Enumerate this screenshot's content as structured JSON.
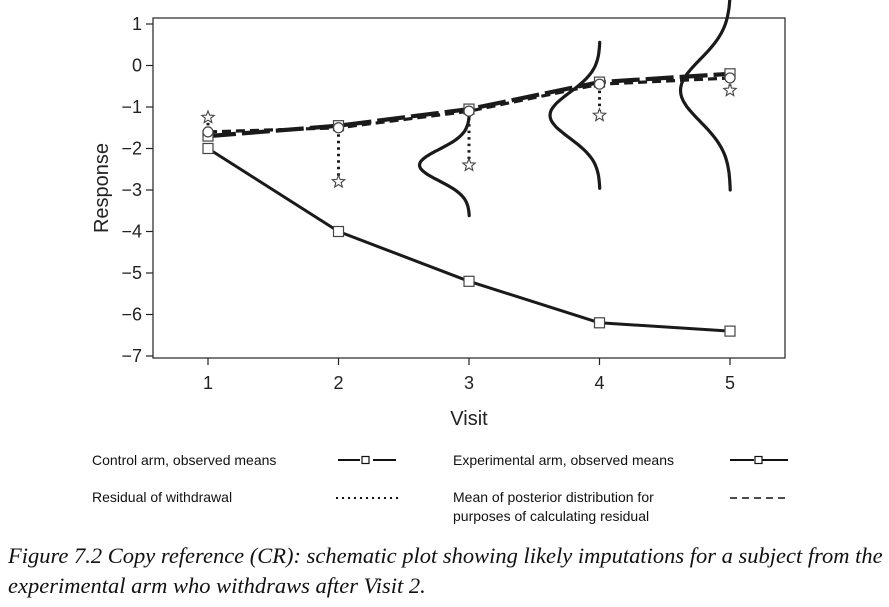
{
  "chart_data": {
    "type": "line",
    "xlabel": "Visit",
    "ylabel": "Response",
    "x": [
      1,
      2,
      3,
      4,
      5
    ],
    "xticks": [
      "1",
      "2",
      "3",
      "4",
      "5"
    ],
    "yticks": [
      "1",
      "0",
      "−1",
      "−2",
      "−3",
      "−4",
      "−5",
      "−6",
      "−7"
    ],
    "ylim": [
      -7,
      1
    ],
    "grid": false,
    "series": [
      {
        "name": "Control arm, observed means",
        "style": "long-dash",
        "marker": "square",
        "x": [
          1,
          2,
          3,
          4,
          5
        ],
        "values": [
          -1.7,
          -1.45,
          -1.05,
          -0.4,
          -0.2
        ]
      },
      {
        "name": "Experimental arm, observed means",
        "style": "solid",
        "marker": "square",
        "x": [
          1,
          2,
          3,
          4,
          5
        ],
        "values": [
          -2.0,
          -4.0,
          -5.2,
          -6.2,
          -6.4
        ]
      },
      {
        "name": "Mean of posterior distribution for purposes of calculating residual",
        "style": "dashed",
        "marker": "circle",
        "x": [
          1,
          2,
          3,
          4,
          5
        ],
        "values": [
          -1.6,
          -1.5,
          -1.1,
          -0.45,
          -0.3
        ]
      }
    ],
    "residuals": {
      "name": "Residual of withdrawal",
      "style": "dotted",
      "marker": "star",
      "x": [
        1,
        2,
        3,
        4,
        5
      ],
      "from": [
        -1.6,
        -1.5,
        -1.1,
        -0.45,
        -0.3
      ],
      "to": [
        -1.25,
        -2.8,
        -2.4,
        -1.2,
        -0.6
      ]
    },
    "densities": [
      {
        "x": 3,
        "center": -2.4,
        "spread": 0.38
      },
      {
        "x": 4,
        "center": -1.2,
        "spread": 0.55
      },
      {
        "x": 5,
        "center": -0.6,
        "spread": 0.75
      }
    ],
    "legend_position": "bottom"
  },
  "legend": {
    "control": "Control arm, observed means",
    "experimental": "Experimental arm, observed means",
    "residual": "Residual of withdrawal",
    "posterior_line1": "Mean of posterior distribution for",
    "posterior_line2": "purposes of calculating residual"
  },
  "caption": {
    "text": "Figure 7.2  Copy reference (CR): schematic plot showing likely imputations for a subject from the experimental arm who withdraws after Visit 2."
  }
}
